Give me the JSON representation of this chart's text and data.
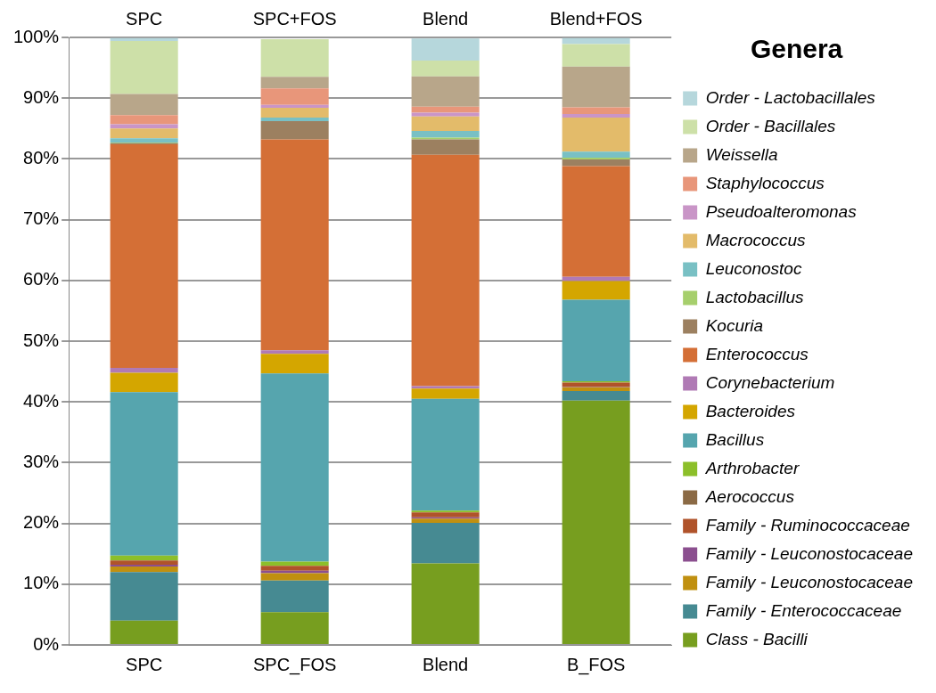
{
  "chart_data": {
    "type": "bar",
    "stacked": true,
    "categories": [
      "SPC",
      "SPC_FOS",
      "Blend",
      "B_FOS"
    ],
    "ylim": [
      0,
      100
    ],
    "yticks": [
      {
        "value": 0,
        "label": "0%"
      },
      {
        "value": 10,
        "label": "10%"
      },
      {
        "value": 20,
        "label": "20%"
      },
      {
        "value": 30,
        "label": "30%"
      },
      {
        "value": 40,
        "label": "40%"
      },
      {
        "value": 50,
        "label": "50%"
      },
      {
        "value": 60,
        "label": "60%"
      },
      {
        "value": 70,
        "label": "70%"
      },
      {
        "value": 80,
        "label": "80%"
      },
      {
        "value": 90,
        "label": "90%"
      },
      {
        "value": 100,
        "label": "100%"
      }
    ],
    "grid": "y",
    "legend": "right",
    "legend_title": "Genera",
    "annotations": [
      "SPC",
      "SPC+FOS",
      "Blend",
      "Blend+FOS"
    ],
    "series": [
      {
        "name": "Class - Bacilli",
        "color": "#779e1f",
        "values": [
          4.0,
          5.4,
          13.4,
          40.2
        ]
      },
      {
        "name": "Family - Enterococcaceae",
        "color": "#468a92",
        "values": [
          8.0,
          5.2,
          6.7,
          1.6
        ]
      },
      {
        "name": "Family - Leuconostocaceae",
        "color": "#c09010",
        "values": [
          0.9,
          1.2,
          0.7,
          0.6
        ]
      },
      {
        "name": "Family - Leuconostocaceae",
        "color": "#8b4f8f",
        "values": [
          0.3,
          0.4,
          0.2,
          0.1
        ]
      },
      {
        "name": "Family - Ruminococcaceae",
        "color": "#b0532a",
        "values": [
          0.7,
          0.8,
          0.8,
          0.7
        ]
      },
      {
        "name": "Aerococcus",
        "color": "#8b6a45",
        "values": [
          null,
          null,
          null,
          null
        ]
      },
      {
        "name": "Arthrobacter",
        "color": "#8cbf2a",
        "values": [
          0.8,
          0.7,
          0.3,
          0.2
        ]
      },
      {
        "name": "Bacillus",
        "color": "#56a5ae",
        "values": [
          26.9,
          31.0,
          18.4,
          13.4
        ]
      },
      {
        "name": "Bacteroides",
        "color": "#d4a600",
        "values": [
          3.2,
          3.2,
          1.7,
          3.1
        ]
      },
      {
        "name": "Corynebacterium",
        "color": "#b07ab5",
        "values": [
          0.8,
          0.6,
          0.4,
          0.7
        ]
      },
      {
        "name": "Enterococcus",
        "color": "#d46f36",
        "values": [
          36.8,
          34.7,
          38.1,
          18.2
        ]
      },
      {
        "name": "Kocuria",
        "color": "#9c8060",
        "values": [
          0.2,
          3.0,
          2.5,
          1.1
        ]
      },
      {
        "name": "Lactobacillus",
        "color": "#a6cf6c",
        "values": [
          0.1,
          null,
          0.3,
          0.3
        ]
      },
      {
        "name": "Leuconostoc",
        "color": "#79c0c4",
        "values": [
          0.7,
          0.6,
          1.1,
          1.0
        ]
      },
      {
        "name": "Macrococcus",
        "color": "#e3bb6a",
        "values": [
          1.6,
          1.6,
          2.4,
          5.6
        ]
      },
      {
        "name": "Pseudoalteromonas",
        "color": "#c995c7",
        "values": [
          0.7,
          0.5,
          0.6,
          0.6
        ]
      },
      {
        "name": "Staphylococcus",
        "color": "#e8967a",
        "values": [
          1.5,
          2.7,
          1.0,
          1.1
        ]
      },
      {
        "name": "Weissella",
        "color": "#b8a68a",
        "values": [
          3.5,
          1.9,
          5.0,
          6.7
        ]
      },
      {
        "name": "Order - Bacillales",
        "color": "#cde0a8",
        "values": [
          8.7,
          6.2,
          2.6,
          3.7
        ]
      },
      {
        "name": "Order - Lactobacillales",
        "color": "#b6d7dc",
        "values": [
          0.5,
          null,
          3.6,
          1.0
        ]
      }
    ]
  }
}
